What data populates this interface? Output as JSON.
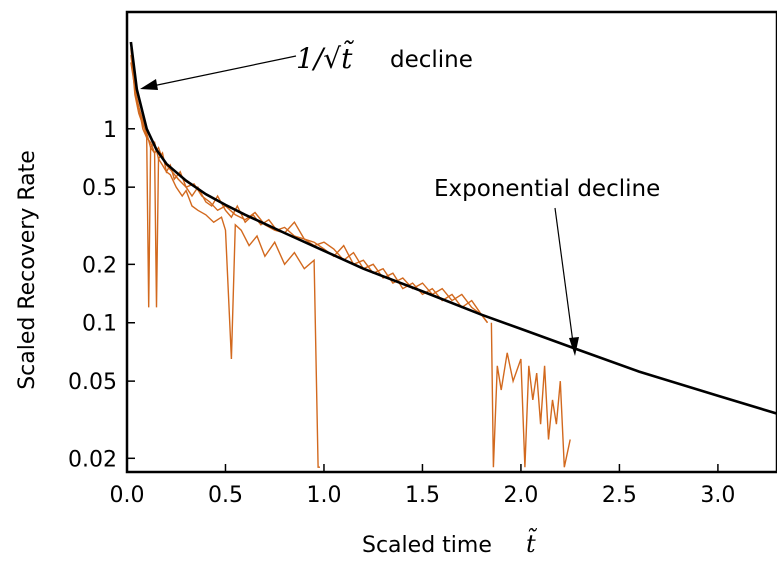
{
  "chart_data": {
    "type": "line",
    "xlabel": "Scaled time",
    "xlabel_symbol": "t̃",
    "ylabel": "Scaled Recovery Rate",
    "xlim": [
      0.0,
      3.3
    ],
    "ylim": [
      0.017,
      4.0
    ],
    "yscale": "log",
    "grid": false,
    "xticks": [
      0.0,
      0.5,
      1.0,
      1.5,
      2.0,
      2.5,
      3.0
    ],
    "xtick_labels": [
      "0.0",
      "0.5",
      "1.0",
      "1.5",
      "2.0",
      "2.5",
      "3.0"
    ],
    "yticks": [
      0.02,
      0.05,
      0.1,
      0.2,
      0.5,
      1
    ],
    "ytick_labels": [
      "0.02",
      "0.05",
      "0.1",
      "0.2",
      "0.5",
      "1"
    ],
    "colors": {
      "model": "#000000",
      "data": "#d2691e"
    },
    "model_curve": {
      "x": [
        0.02,
        0.05,
        0.1,
        0.15,
        0.2,
        0.3,
        0.4,
        0.5,
        0.6,
        0.8,
        1.0,
        1.2,
        1.5,
        1.8,
        2.0,
        2.3,
        2.6,
        3.0,
        3.3
      ],
      "y": [
        2.8,
        1.6,
        1.0,
        0.78,
        0.66,
        0.54,
        0.46,
        0.405,
        0.36,
        0.29,
        0.235,
        0.19,
        0.145,
        0.11,
        0.093,
        0.072,
        0.056,
        0.042,
        0.034
      ]
    },
    "series": [
      {
        "x": [
          0.02,
          0.04,
          0.06,
          0.08,
          0.1,
          0.12,
          0.14,
          0.16,
          0.18,
          0.2,
          0.22,
          0.24,
          0.27,
          0.3,
          0.33,
          0.36,
          0.4,
          0.43,
          0.46,
          0.5,
          0.53,
          0.56,
          0.6,
          0.64,
          0.68,
          0.72,
          0.76,
          0.8,
          0.85,
          0.9,
          0.95,
          1.0,
          1.05,
          1.1,
          1.15,
          1.2,
          1.25,
          1.3,
          1.35,
          1.4,
          1.45,
          1.5,
          1.55,
          1.6,
          1.65,
          1.7,
          1.75,
          1.8,
          1.83
        ],
        "y": [
          2.6,
          1.5,
          1.2,
          1.05,
          0.95,
          0.8,
          0.85,
          0.7,
          0.75,
          0.6,
          0.65,
          0.55,
          0.6,
          0.5,
          0.45,
          0.5,
          0.42,
          0.4,
          0.45,
          0.38,
          0.35,
          0.4,
          0.33,
          0.36,
          0.32,
          0.34,
          0.3,
          0.31,
          0.28,
          0.27,
          0.26,
          0.24,
          0.22,
          0.25,
          0.2,
          0.21,
          0.18,
          0.19,
          0.16,
          0.17,
          0.15,
          0.16,
          0.14,
          0.15,
          0.13,
          0.14,
          0.12,
          0.11,
          0.1
        ]
      },
      {
        "x": [
          0.02,
          0.05,
          0.08,
          0.1,
          0.12,
          0.14,
          0.16,
          0.18,
          0.2,
          0.23,
          0.26,
          0.3,
          0.34,
          0.38,
          0.42,
          0.46,
          0.5,
          0.55,
          0.6,
          0.65,
          0.7,
          0.75,
          0.8,
          0.85,
          0.9,
          0.95,
          1.0,
          1.05,
          1.1,
          1.15,
          1.2,
          1.25,
          1.3,
          1.35,
          1.4,
          1.45,
          1.5,
          1.55,
          1.6,
          1.65,
          1.7,
          1.75,
          1.8,
          1.83
        ],
        "y": [
          2.2,
          1.4,
          1.1,
          0.9,
          0.85,
          0.75,
          0.8,
          0.7,
          0.65,
          0.6,
          0.55,
          0.5,
          0.52,
          0.45,
          0.42,
          0.38,
          0.4,
          0.36,
          0.34,
          0.37,
          0.32,
          0.3,
          0.29,
          0.33,
          0.27,
          0.25,
          0.26,
          0.24,
          0.21,
          0.23,
          0.19,
          0.2,
          0.17,
          0.18,
          0.15,
          0.16,
          0.14,
          0.15,
          0.13,
          0.14,
          0.12,
          0.13,
          0.11,
          0.1
        ]
      },
      {
        "x": [
          0.02,
          0.04,
          0.06,
          0.08,
          0.1,
          0.11,
          0.12,
          0.14,
          0.15,
          0.16,
          0.18,
          0.2,
          0.22,
          0.25,
          0.28,
          0.3,
          0.33,
          0.36,
          0.4,
          0.44,
          0.48,
          0.5,
          0.53,
          0.55,
          0.58,
          0.62,
          0.66,
          0.7,
          0.75,
          0.8,
          0.85,
          0.9,
          0.95,
          0.97,
          0.98
        ],
        "y": [
          2.4,
          1.6,
          1.3,
          1.0,
          0.9,
          0.12,
          0.8,
          0.75,
          0.12,
          0.7,
          0.65,
          0.6,
          0.58,
          0.5,
          0.45,
          0.48,
          0.4,
          0.38,
          0.36,
          0.33,
          0.35,
          0.3,
          0.065,
          0.32,
          0.3,
          0.25,
          0.28,
          0.22,
          0.26,
          0.2,
          0.23,
          0.19,
          0.21,
          0.018,
          0.018
        ]
      },
      {
        "x": [
          1.85,
          1.86,
          1.88,
          1.9,
          1.93,
          1.96,
          2.0,
          2.02,
          2.04,
          2.06,
          2.08,
          2.1,
          2.12,
          2.14,
          2.16,
          2.18,
          2.2,
          2.22,
          2.23,
          2.25
        ],
        "y": [
          0.1,
          0.018,
          0.06,
          0.045,
          0.07,
          0.05,
          0.065,
          0.018,
          0.06,
          0.04,
          0.055,
          0.03,
          0.06,
          0.025,
          0.04,
          0.03,
          0.05,
          0.018,
          0.02,
          0.025
        ]
      }
    ],
    "annotations": [
      {
        "text_math": "1/√t̃",
        "text": "decline",
        "points_to": [
          0.07,
          1.3
        ]
      },
      {
        "text": "Exponential decline",
        "points_to": [
          2.28,
          0.068
        ]
      }
    ]
  }
}
